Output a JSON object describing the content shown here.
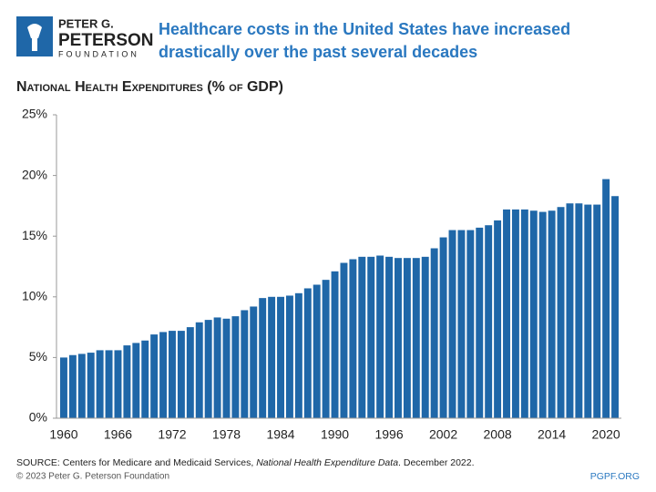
{
  "logo": {
    "line1": "PETER G.",
    "line2": "PETERSON",
    "line3": "FOUNDATION"
  },
  "chart_data": {
    "type": "bar",
    "title": "Healthcare costs in the United States have increased",
    "title_line2": "drastically over the past several decades",
    "subtitle": "National Health Expenditures (% of GDP)",
    "categories": [
      "1960",
      null,
      null,
      null,
      null,
      null,
      "1966",
      null,
      null,
      null,
      null,
      null,
      "1972",
      null,
      null,
      null,
      null,
      null,
      "1978",
      null,
      null,
      null,
      null,
      null,
      "1984",
      null,
      null,
      null,
      null,
      null,
      "1990",
      null,
      null,
      null,
      null,
      null,
      "1996",
      null,
      null,
      null,
      null,
      null,
      "2002",
      null,
      null,
      null,
      null,
      null,
      "2008",
      null,
      null,
      null,
      null,
      null,
      "2014",
      null,
      null,
      null,
      null,
      null,
      "2020",
      null
    ],
    "values": [
      5.0,
      5.2,
      5.3,
      5.4,
      5.6,
      5.6,
      5.6,
      6.0,
      6.2,
      6.4,
      6.9,
      7.1,
      7.2,
      7.2,
      7.5,
      7.9,
      8.1,
      8.3,
      8.2,
      8.4,
      8.9,
      9.2,
      9.9,
      10.0,
      10.0,
      10.1,
      10.3,
      10.7,
      11.0,
      11.4,
      12.1,
      12.8,
      13.1,
      13.3,
      13.3,
      13.4,
      13.3,
      13.2,
      13.2,
      13.2,
      13.3,
      14.0,
      14.9,
      15.5,
      15.5,
      15.5,
      15.7,
      15.9,
      16.3,
      17.2,
      17.2,
      17.2,
      17.1,
      17.0,
      17.1,
      17.4,
      17.7,
      17.7,
      17.6,
      17.6,
      19.7,
      18.3
    ],
    "color": "#1f67a8",
    "ylim": [
      0,
      25
    ],
    "yticks": [
      {
        "value": 0,
        "label": "0%"
      },
      {
        "value": 5,
        "label": "5%"
      },
      {
        "value": 10,
        "label": "10%"
      },
      {
        "value": 15,
        "label": "15%"
      },
      {
        "value": 20,
        "label": "20%"
      },
      {
        "value": 25,
        "label": "25%"
      }
    ],
    "grid": false
  },
  "source": {
    "prefix": "SOURCE: Centers for Medicare and Medicaid Services, ",
    "italic": "National Health Expenditure Data",
    "suffix": ". December 2022."
  },
  "footer": {
    "copyright": "© 2023 Peter G. Peterson Foundation",
    "site": "PGPF.ORG"
  }
}
